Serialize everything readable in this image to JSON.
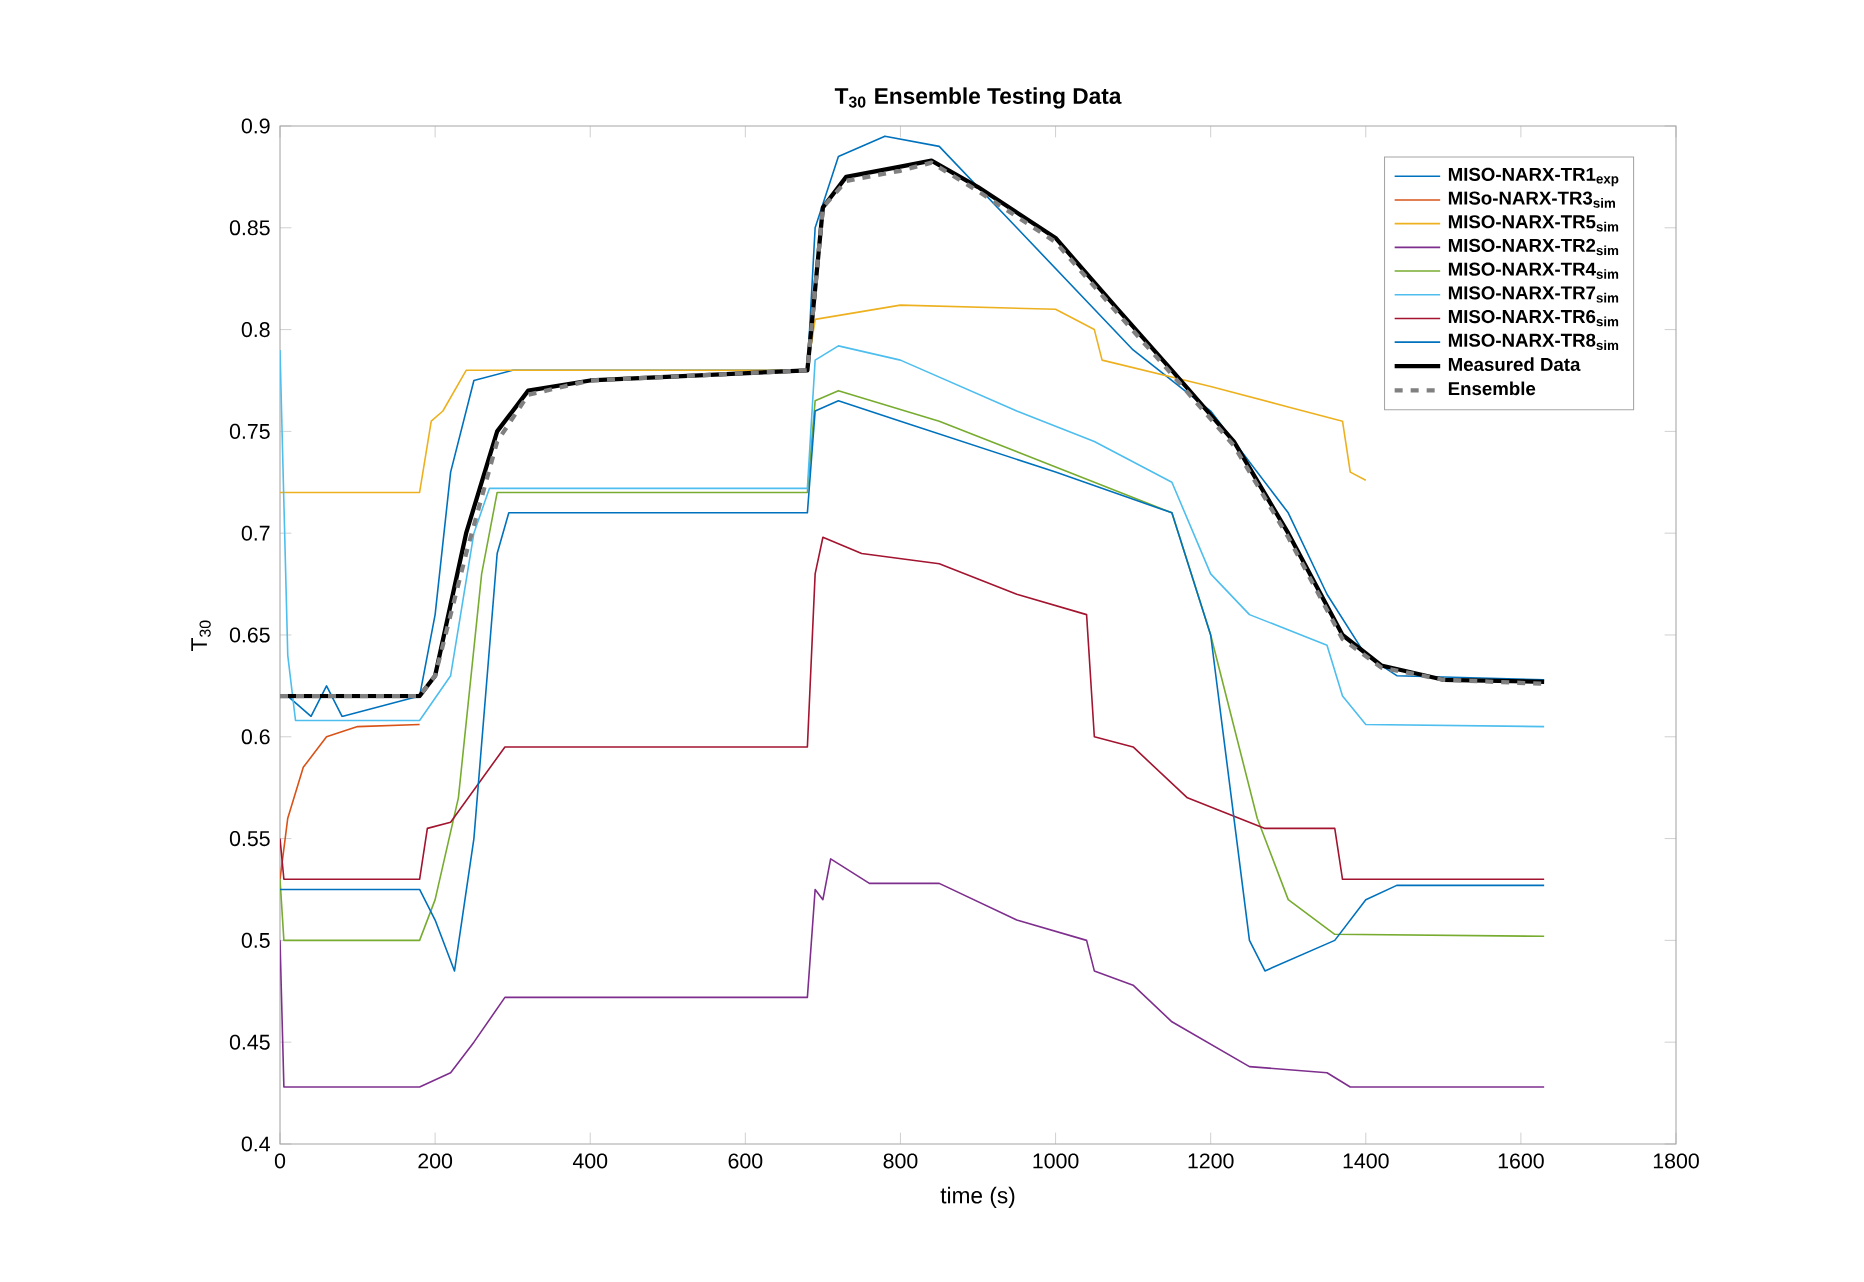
{
  "chart_data": {
    "type": "line",
    "title": "T$_{30}$ Ensemble Testing Data",
    "xlabel": "time (s)",
    "ylabel": "T$_{30}$",
    "xlim": [
      0,
      1800
    ],
    "xticks": [
      0,
      200,
      400,
      600,
      800,
      1000,
      1200,
      1400,
      1600,
      1800
    ],
    "ylim": [
      0.4,
      0.9
    ],
    "yticks": [
      0.4,
      0.45,
      0.5,
      0.55,
      0.6,
      0.65,
      0.7,
      0.75,
      0.8,
      0.85,
      0.9
    ],
    "legend": "top right",
    "grid": false,
    "marker": "none",
    "series": [
      {
        "name": "MISO-NARX-TR1$_{exp}$",
        "color": "#0072bd",
        "x": [
          0,
          10,
          40,
          60,
          80,
          180,
          200,
          220,
          250,
          300,
          680,
          690,
          720,
          780,
          850,
          950,
          1050,
          1100,
          1200,
          1300,
          1350,
          1400,
          1440,
          1630
        ],
        "values": [
          0.62,
          0.62,
          0.61,
          0.625,
          0.61,
          0.62,
          0.66,
          0.73,
          0.775,
          0.78,
          0.78,
          0.85,
          0.885,
          0.895,
          0.89,
          0.85,
          0.81,
          0.79,
          0.76,
          0.71,
          0.67,
          0.64,
          0.63,
          0.628
        ]
      },
      {
        "name": "MISo-NARX-TR3$_{sim}$",
        "color": "#d95319",
        "x": [
          0,
          10,
          30,
          60,
          100,
          180
        ],
        "values": [
          0.53,
          0.56,
          0.585,
          0.6,
          0.605,
          0.606
        ]
      },
      {
        "name": "MISO-NARX-TR5$_{sim}$",
        "color": "#edb120",
        "x": [
          0,
          180,
          195,
          210,
          240,
          680,
          690,
          800,
          1000,
          1050,
          1060,
          1200,
          1300,
          1370,
          1380,
          1400
        ],
        "values": [
          0.72,
          0.72,
          0.755,
          0.76,
          0.78,
          0.78,
          0.805,
          0.812,
          0.81,
          0.8,
          0.785,
          0.772,
          0.762,
          0.755,
          0.73,
          0.726
        ]
      },
      {
        "name": "MISO-NARX-TR2$_{sim}$",
        "color": "#7e2f8e",
        "x": [
          0,
          5,
          180,
          220,
          250,
          290,
          680,
          690,
          700,
          710,
          760,
          850,
          950,
          1040,
          1050,
          1100,
          1150,
          1250,
          1350,
          1380,
          1630
        ],
        "values": [
          0.5,
          0.428,
          0.428,
          0.435,
          0.45,
          0.472,
          0.472,
          0.525,
          0.52,
          0.54,
          0.528,
          0.528,
          0.51,
          0.5,
          0.485,
          0.478,
          0.46,
          0.438,
          0.435,
          0.428,
          0.428
        ]
      },
      {
        "name": "MISO-NARX-TR4$_{sim}$",
        "color": "#77ac30",
        "x": [
          0,
          5,
          180,
          200,
          230,
          260,
          280,
          680,
          690,
          720,
          850,
          1050,
          1150,
          1200,
          1260,
          1300,
          1360,
          1630
        ],
        "values": [
          0.53,
          0.5,
          0.5,
          0.52,
          0.57,
          0.68,
          0.72,
          0.72,
          0.765,
          0.77,
          0.755,
          0.725,
          0.71,
          0.65,
          0.56,
          0.52,
          0.503,
          0.502
        ]
      },
      {
        "name": "MISO-NARX-TR7$_{sim}$",
        "color": "#4dbeee",
        "x": [
          0,
          10,
          20,
          180,
          220,
          250,
          270,
          680,
          690,
          720,
          800,
          950,
          1050,
          1150,
          1200,
          1250,
          1350,
          1370,
          1400,
          1630
        ],
        "values": [
          0.79,
          0.64,
          0.608,
          0.608,
          0.63,
          0.7,
          0.722,
          0.722,
          0.785,
          0.792,
          0.785,
          0.76,
          0.745,
          0.725,
          0.68,
          0.66,
          0.645,
          0.62,
          0.606,
          0.605
        ]
      },
      {
        "name": "MISO-NARX-TR6$_{sim}$",
        "color": "#a2142f",
        "x": [
          0,
          5,
          10,
          180,
          190,
          220,
          290,
          680,
          690,
          700,
          750,
          850,
          950,
          1040,
          1050,
          1100,
          1170,
          1270,
          1360,
          1370,
          1630
        ],
        "values": [
          0.55,
          0.53,
          0.53,
          0.53,
          0.555,
          0.558,
          0.595,
          0.595,
          0.68,
          0.698,
          0.69,
          0.685,
          0.67,
          0.66,
          0.6,
          0.595,
          0.57,
          0.555,
          0.555,
          0.53,
          0.53
        ]
      },
      {
        "name": "MISO-NARX-TR8$_{sim}$",
        "color": "#0072bd",
        "x": [
          0,
          180,
          200,
          225,
          250,
          280,
          295,
          680,
          690,
          720,
          800,
          1000,
          1150,
          1200,
          1250,
          1270,
          1360,
          1400,
          1440,
          1630
        ],
        "values": [
          0.525,
          0.525,
          0.51,
          0.485,
          0.55,
          0.69,
          0.71,
          0.71,
          0.76,
          0.765,
          0.755,
          0.73,
          0.71,
          0.65,
          0.5,
          0.485,
          0.5,
          0.52,
          0.527,
          0.527
        ]
      },
      {
        "name": "Measured Data",
        "color": "#000000",
        "x": [
          0,
          180,
          200,
          240,
          280,
          320,
          400,
          680,
          690,
          700,
          730,
          800,
          840,
          900,
          1000,
          1080,
          1150,
          1230,
          1300,
          1370,
          1420,
          1500,
          1630
        ],
        "values": [
          0.62,
          0.62,
          0.63,
          0.7,
          0.75,
          0.77,
          0.775,
          0.78,
          0.82,
          0.86,
          0.875,
          0.88,
          0.883,
          0.87,
          0.845,
          0.81,
          0.78,
          0.745,
          0.7,
          0.65,
          0.635,
          0.628,
          0.627
        ]
      },
      {
        "name": "Ensemble",
        "color": "#808080",
        "line_style": "dashed",
        "x": [
          0,
          180,
          200,
          240,
          280,
          320,
          400,
          680,
          690,
          700,
          730,
          800,
          840,
          900,
          1000,
          1080,
          1150,
          1230,
          1300,
          1370,
          1420,
          1500,
          1630
        ],
        "values": [
          0.62,
          0.62,
          0.63,
          0.69,
          0.745,
          0.768,
          0.775,
          0.78,
          0.82,
          0.86,
          0.873,
          0.878,
          0.882,
          0.868,
          0.843,
          0.808,
          0.778,
          0.743,
          0.698,
          0.648,
          0.634,
          0.628,
          0.626
        ]
      }
    ]
  }
}
